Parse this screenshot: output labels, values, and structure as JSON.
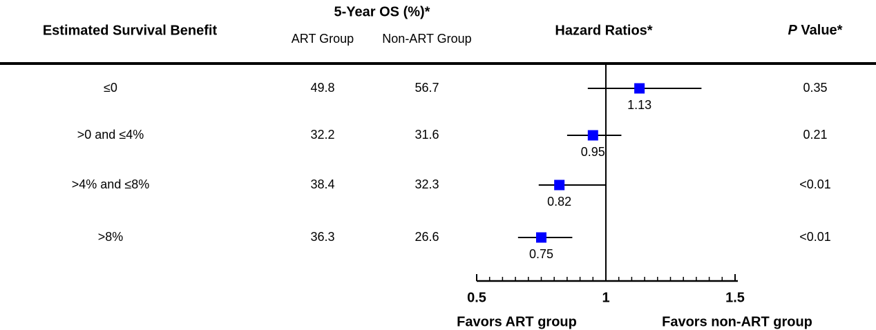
{
  "chart_data": {
    "type": "forest",
    "headers": {
      "label": "Estimated Survival Benefit",
      "os": "5-Year OS (%)*",
      "art": "ART Group",
      "non_art": "Non-ART Group",
      "hr": "Hazard Ratios*",
      "p_italic": "P",
      "p_rest": "Value*"
    },
    "categories": [
      "≤0",
      ">0 and ≤4%",
      ">4% and ≤8%",
      ">8%"
    ],
    "art_os": [
      49.8,
      32.2,
      38.4,
      36.3
    ],
    "non_art_os": [
      56.7,
      31.6,
      32.3,
      26.6
    ],
    "hazard_ratios": [
      1.13,
      0.95,
      0.82,
      0.75
    ],
    "ci_lower": [
      0.93,
      0.85,
      0.74,
      0.66
    ],
    "ci_upper": [
      1.37,
      1.06,
      1.0,
      0.87
    ],
    "p_values": [
      "0.35",
      "0.21",
      "<0.01",
      "<0.01"
    ],
    "color": "#0000ff",
    "reference": 1,
    "xlim": [
      0.5,
      1.5
    ],
    "xticks": [
      0.5,
      1,
      1.5
    ],
    "xminor_ticks": [
      0.55,
      0.6,
      0.65,
      0.7,
      0.75,
      0.8,
      0.85,
      0.9,
      0.95,
      1.05,
      1.1,
      1.15,
      1.2,
      1.25,
      1.3,
      1.35,
      1.4,
      1.45
    ],
    "favors_left": "Favors ART group",
    "favors_right": "Favors non-ART group"
  }
}
